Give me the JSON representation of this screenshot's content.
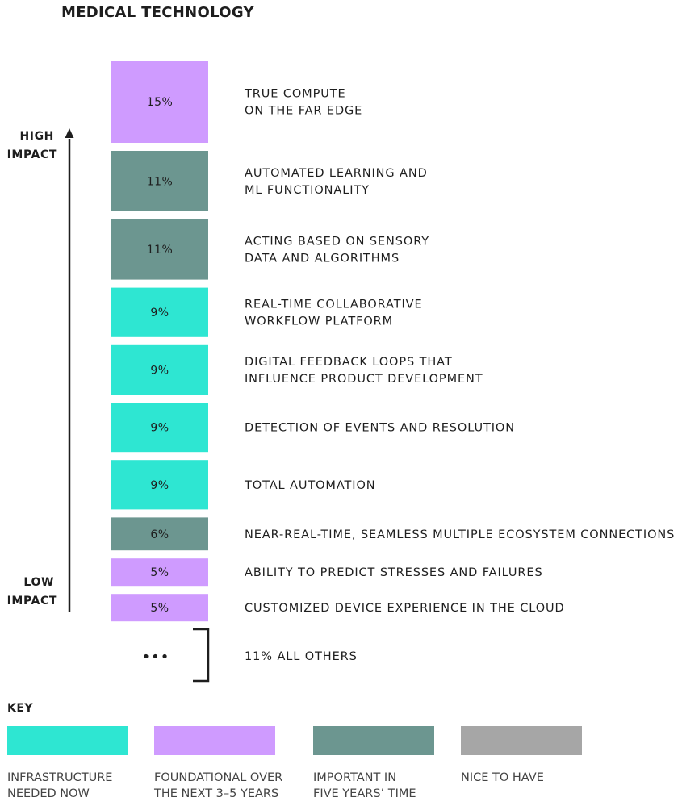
{
  "title": "MEDICAL TECHNOLOGY",
  "axis": {
    "high": [
      "HIGH",
      "IMPACT"
    ],
    "low": [
      "LOW",
      "IMPACT"
    ]
  },
  "colors": {
    "infrastructure": "#2ee6d2",
    "foundational": "#cf9bff",
    "important": "#6c9690",
    "nice": "#a6a6a6"
  },
  "chart_data": {
    "type": "bar",
    "orientation": "stacked-vertical",
    "unit": "%",
    "categories": [
      "TRUE COMPUTE ON THE FAR EDGE",
      "AUTOMATED LEARNING AND ML FUNCTIONALITY",
      "ACTING BASED ON SENSORY DATA AND ALGORITHMS",
      "REAL-TIME COLLABORATIVE WORKFLOW PLATFORM",
      "DIGITAL FEEDBACK LOOPS THAT INFLUENCE PRODUCT DEVELOPMENT",
      "DETECTION OF EVENTS AND RESOLUTION",
      "TOTAL AUTOMATION",
      "NEAR-REAL-TIME, SEAMLESS MULTIPLE ECOSYSTEM CONNECTIONS",
      "ABILITY TO PREDICT STRESSES AND FAILURES",
      "CUSTOMIZED DEVICE EXPERIENCE IN THE CLOUD"
    ],
    "values": [
      15,
      11,
      11,
      9,
      9,
      9,
      9,
      6,
      5,
      5
    ],
    "bars": [
      {
        "value": 15,
        "label": "15%",
        "category": "foundational",
        "lines": [
          "TRUE COMPUTE",
          "ON THE FAR EDGE"
        ]
      },
      {
        "value": 11,
        "label": "11%",
        "category": "important",
        "lines": [
          "AUTOMATED LEARNING AND",
          "ML FUNCTIONALITY"
        ]
      },
      {
        "value": 11,
        "label": "11%",
        "category": "important",
        "lines": [
          "ACTING BASED ON SENSORY",
          "DATA AND ALGORITHMS"
        ]
      },
      {
        "value": 9,
        "label": "9%",
        "category": "infrastructure",
        "lines": [
          "REAL-TIME COLLABORATIVE",
          "WORKFLOW PLATFORM"
        ]
      },
      {
        "value": 9,
        "label": "9%",
        "category": "infrastructure",
        "lines": [
          "DIGITAL FEEDBACK LOOPS THAT",
          "INFLUENCE PRODUCT DEVELOPMENT"
        ]
      },
      {
        "value": 9,
        "label": "9%",
        "category": "infrastructure",
        "lines": [
          "DETECTION OF EVENTS AND RESOLUTION"
        ]
      },
      {
        "value": 9,
        "label": "9%",
        "category": "infrastructure",
        "lines": [
          "TOTAL AUTOMATION"
        ]
      },
      {
        "value": 6,
        "label": "6%",
        "category": "important",
        "lines": [
          "NEAR-REAL-TIME, SEAMLESS MULTIPLE ECOSYSTEM CONNECTIONS"
        ]
      },
      {
        "value": 5,
        "label": "5%",
        "category": "foundational",
        "lines": [
          "ABILITY TO PREDICT STRESSES AND FAILURES"
        ]
      },
      {
        "value": 5,
        "label": "5%",
        "category": "foundational",
        "lines": [
          "CUSTOMIZED DEVICE EXPERIENCE IN THE CLOUD"
        ]
      }
    ],
    "others": {
      "value": 11,
      "symbol": "•••",
      "label": "11% ALL OTHERS"
    }
  },
  "key": {
    "title": "KEY",
    "items": [
      {
        "category": "infrastructure",
        "lines": [
          "INFRASTRUCTURE",
          "NEEDED NOW"
        ]
      },
      {
        "category": "foundational",
        "lines": [
          "FOUNDATIONAL OVER",
          "THE NEXT 3–5 YEARS"
        ]
      },
      {
        "category": "important",
        "lines": [
          "IMPORTANT IN",
          "FIVE YEARS’ TIME"
        ]
      },
      {
        "category": "nice",
        "lines": [
          "NICE TO HAVE"
        ]
      }
    ]
  }
}
